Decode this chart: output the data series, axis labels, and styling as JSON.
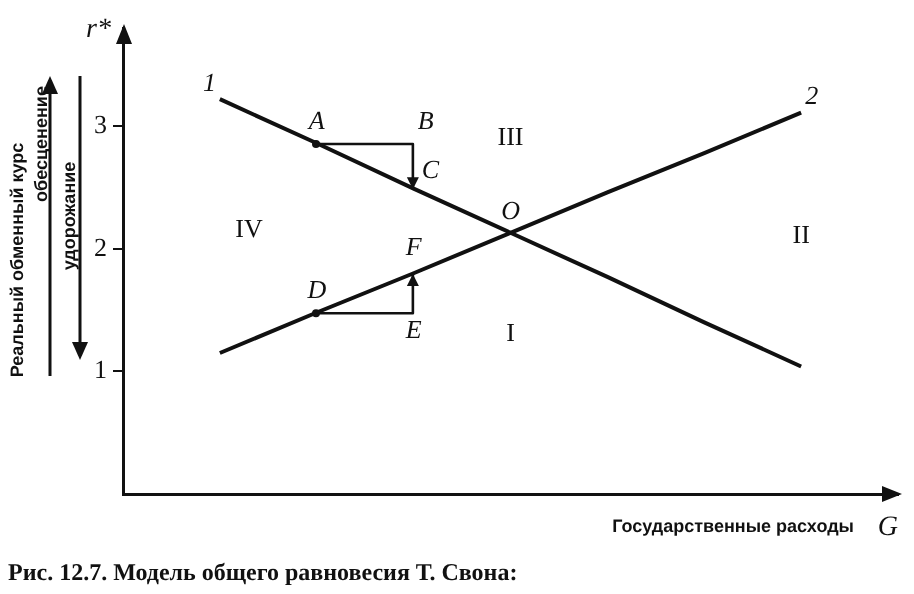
{
  "chart_data": {
    "type": "line",
    "ylabel": "Реальный обменный курс",
    "xlabel": "Государственные расходы",
    "categories": [
      null,
      null,
      null,
      null,
      null,
      null,
      null,
      null,
      null
    ],
    "ylim": [
      0,
      3.8
    ],
    "yticks": [
      1,
      2,
      3
    ],
    "tick_labels": "y",
    "grid": false,
    "legend": false,
    "line_style": "solid",
    "series": [
      {
        "name": "1",
        "color": "#111111",
        "values": [
          null,
          3.22,
          2.86,
          2.49,
          2.13,
          1.77,
          1.4,
          1.04,
          null
        ]
      },
      {
        "name": "2",
        "color": "#111111",
        "values": [
          null,
          1.15,
          1.48,
          1.8,
          2.13,
          2.46,
          2.78,
          3.11,
          null
        ]
      }
    ],
    "annotations": [
      "r*",
      "G",
      "обесценение",
      "удорожание",
      "Рис. 12.7. Модель общего равновесия Т. Свона:",
      "A",
      "B",
      "C",
      "D",
      "E",
      "F",
      "O",
      "I",
      "II",
      "III",
      "IV"
    ]
  }
}
